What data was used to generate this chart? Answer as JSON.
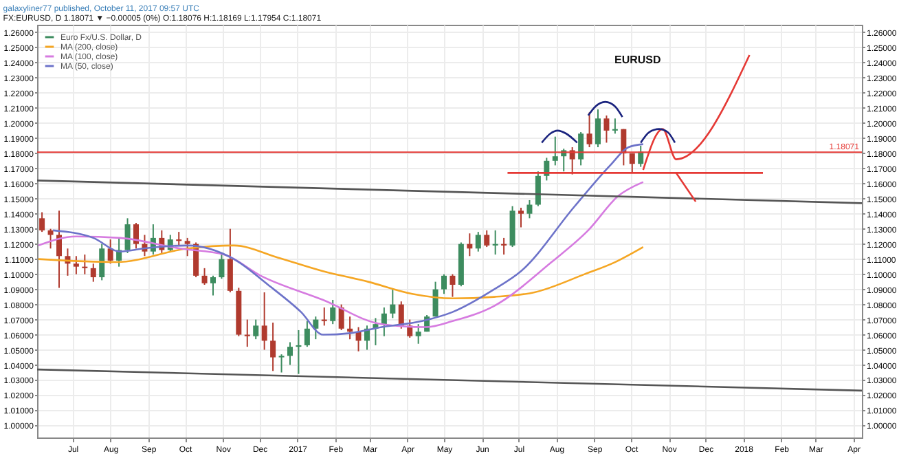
{
  "chart_data": {
    "type": "candlestick",
    "title": "galaxyliner77 published, October 11, 2017 09:57 UTC",
    "subtitle": "FX:EURUSD, D 1.18071 ▼ −0.00005 (0%) O:1.18076 H:1.18169 L:1.17954 C:1.18071",
    "annotations": [
      "EURUSD"
    ],
    "xlim": [
      "2016-06-02",
      "2018-04-08"
    ],
    "xticks": [
      {
        "value": "2016-07-01",
        "label": "Jul"
      },
      {
        "value": "2016-08-01",
        "label": "Aug"
      },
      {
        "value": "2016-09-01",
        "label": "Sep"
      },
      {
        "value": "2016-10-01",
        "label": "Oct"
      },
      {
        "value": "2016-11-01",
        "label": "Nov"
      },
      {
        "value": "2016-12-01",
        "label": "Dec"
      },
      {
        "value": "2017-01-01",
        "label": "2017"
      },
      {
        "value": "2017-02-01",
        "label": "Feb"
      },
      {
        "value": "2017-03-01",
        "label": "Mar"
      },
      {
        "value": "2017-04-01",
        "label": "Apr"
      },
      {
        "value": "2017-05-01",
        "label": "May"
      },
      {
        "value": "2017-06-01",
        "label": "Jun"
      },
      {
        "value": "2017-07-01",
        "label": "Jul"
      },
      {
        "value": "2017-08-01",
        "label": "Aug"
      },
      {
        "value": "2017-09-01",
        "label": "Sep"
      },
      {
        "value": "2017-10-01",
        "label": "Oct"
      },
      {
        "value": "2017-11-01",
        "label": "Nov"
      },
      {
        "value": "2017-12-01",
        "label": "Dec"
      },
      {
        "value": "2018-01-01",
        "label": "2018"
      },
      {
        "value": "2018-02-01",
        "label": "Feb"
      },
      {
        "value": "2018-03-01",
        "label": "Mar"
      },
      {
        "value": "2018-04-01",
        "label": "Apr"
      }
    ],
    "ylim": [
      0.992,
      1.265
    ],
    "yticks": [
      {
        "value": 1.0,
        "label": "1.00000"
      },
      {
        "value": 1.01,
        "label": "1.01000"
      },
      {
        "value": 1.02,
        "label": "1.02000"
      },
      {
        "value": 1.03,
        "label": "1.03000"
      },
      {
        "value": 1.04,
        "label": "1.04000"
      },
      {
        "value": 1.05,
        "label": "1.05000"
      },
      {
        "value": 1.06,
        "label": "1.06000"
      },
      {
        "value": 1.07,
        "label": "1.07000"
      },
      {
        "value": 1.08,
        "label": "1.08000"
      },
      {
        "value": 1.09,
        "label": "1.09000"
      },
      {
        "value": 1.1,
        "label": "1.10000"
      },
      {
        "value": 1.11,
        "label": "1.11000"
      },
      {
        "value": 1.12,
        "label": "1.12000"
      },
      {
        "value": 1.13,
        "label": "1.13000"
      },
      {
        "value": 1.14,
        "label": "1.14000"
      },
      {
        "value": 1.15,
        "label": "1.15000"
      },
      {
        "value": 1.16,
        "label": "1.16000"
      },
      {
        "value": 1.17,
        "label": "1.17000"
      },
      {
        "value": 1.18,
        "label": "1.18000"
      },
      {
        "value": 1.19,
        "label": "1.19000"
      },
      {
        "value": 1.2,
        "label": "1.20000"
      },
      {
        "value": 1.21,
        "label": "1.21000"
      },
      {
        "value": 1.22,
        "label": "1.22000"
      },
      {
        "value": 1.23,
        "label": "1.23000"
      },
      {
        "value": 1.24,
        "label": "1.24000"
      },
      {
        "value": 1.25,
        "label": "1.25000"
      },
      {
        "value": 1.26,
        "label": "1.26000"
      }
    ],
    "y2lim": [
      0.992,
      1.265
    ],
    "y2ticks": [
      {
        "value": 1.0,
        "label": "1.00000"
      },
      {
        "value": 1.01,
        "label": "1.01000"
      },
      {
        "value": 1.02,
        "label": "1.02000"
      },
      {
        "value": 1.03,
        "label": "1.03000"
      },
      {
        "value": 1.04,
        "label": "1.04000"
      },
      {
        "value": 1.05,
        "label": "1.05000"
      },
      {
        "value": 1.06,
        "label": "1.06000"
      },
      {
        "value": 1.07,
        "label": "1.07000"
      },
      {
        "value": 1.08,
        "label": "1.08000"
      },
      {
        "value": 1.09,
        "label": "1.09000"
      },
      {
        "value": 1.1,
        "label": "1.10000"
      },
      {
        "value": 1.11,
        "label": "1.11000"
      },
      {
        "value": 1.12,
        "label": "1.12000"
      },
      {
        "value": 1.13,
        "label": "1.13000"
      },
      {
        "value": 1.14,
        "label": "1.14000"
      },
      {
        "value": 1.15,
        "label": "1.15000"
      },
      {
        "value": 1.16,
        "label": "1.16000"
      },
      {
        "value": 1.17,
        "label": "1.17000"
      },
      {
        "value": 1.18,
        "label": "1.18000"
      },
      {
        "value": 1.19,
        "label": "1.19000"
      },
      {
        "value": 1.2,
        "label": "1.20000"
      },
      {
        "value": 1.21,
        "label": "1.21000"
      },
      {
        "value": 1.22,
        "label": "1.22000"
      },
      {
        "value": 1.23,
        "label": "1.23000"
      },
      {
        "value": 1.24,
        "label": "1.24000"
      },
      {
        "value": 1.25,
        "label": "1.25000"
      },
      {
        "value": 1.26,
        "label": "1.26000"
      }
    ],
    "grid": true,
    "legend": "top left",
    "ref_lines": [
      {
        "axis": "y",
        "value": 1.18071,
        "label": "1.18071",
        "color": "#e53935"
      }
    ],
    "series": [
      {
        "name": "Euro Fx/U.S. Dollar, D",
        "color": "#3d8c5f",
        "x": [
          "2016-06-06",
          "2016-06-13",
          "2016-06-20",
          "2016-06-27",
          "2016-07-04",
          "2016-07-11",
          "2016-07-18",
          "2016-07-25",
          "2016-08-01",
          "2016-08-08",
          "2016-08-15",
          "2016-08-22",
          "2016-08-29",
          "2016-09-05",
          "2016-09-12",
          "2016-09-19",
          "2016-09-26",
          "2016-10-03",
          "2016-10-10",
          "2016-10-17",
          "2016-10-24",
          "2016-10-31",
          "2016-11-07",
          "2016-11-14",
          "2016-11-21",
          "2016-11-28",
          "2016-12-05",
          "2016-12-12",
          "2016-12-19",
          "2016-12-26",
          "2017-01-02",
          "2017-01-09",
          "2017-01-16",
          "2017-01-23",
          "2017-01-30",
          "2017-02-06",
          "2017-02-13",
          "2017-02-20",
          "2017-02-27",
          "2017-03-06",
          "2017-03-13",
          "2017-03-20",
          "2017-03-27",
          "2017-04-03",
          "2017-04-10",
          "2017-04-17",
          "2017-04-24",
          "2017-05-01",
          "2017-05-08",
          "2017-05-15",
          "2017-05-22",
          "2017-05-29",
          "2017-06-05",
          "2017-06-12",
          "2017-06-19",
          "2017-06-26",
          "2017-07-03",
          "2017-07-10",
          "2017-07-17",
          "2017-07-24",
          "2017-07-31",
          "2017-08-07",
          "2017-08-14",
          "2017-08-21",
          "2017-08-28",
          "2017-09-04",
          "2017-09-11",
          "2017-09-18",
          "2017-09-25",
          "2017-10-02",
          "2017-10-09"
        ],
        "ohlc": [
          [
            1.137,
            1.141,
            1.128,
            1.129
          ],
          [
            1.129,
            1.13,
            1.117,
            1.126
          ],
          [
            1.126,
            1.142,
            1.091,
            1.112
          ],
          [
            1.112,
            1.117,
            1.099,
            1.107
          ],
          [
            1.107,
            1.112,
            1.1,
            1.105
          ],
          [
            1.105,
            1.113,
            1.1,
            1.104
          ],
          [
            1.104,
            1.107,
            1.095,
            1.098
          ],
          [
            1.098,
            1.12,
            1.096,
            1.117
          ],
          [
            1.117,
            1.123,
            1.107,
            1.109
          ],
          [
            1.109,
            1.124,
            1.105,
            1.116
          ],
          [
            1.116,
            1.137,
            1.114,
            1.133
          ],
          [
            1.133,
            1.134,
            1.117,
            1.12
          ],
          [
            1.12,
            1.126,
            1.112,
            1.115
          ],
          [
            1.115,
            1.133,
            1.113,
            1.124
          ],
          [
            1.124,
            1.129,
            1.114,
            1.116
          ],
          [
            1.116,
            1.126,
            1.115,
            1.123
          ],
          [
            1.123,
            1.128,
            1.119,
            1.122
          ],
          [
            1.122,
            1.124,
            1.112,
            1.12
          ],
          [
            1.12,
            1.121,
            1.098,
            1.099
          ],
          [
            1.099,
            1.104,
            1.093,
            1.094
          ],
          [
            1.094,
            1.099,
            1.086,
            1.098
          ],
          [
            1.098,
            1.114,
            1.097,
            1.11
          ],
          [
            1.11,
            1.13,
            1.088,
            1.089
          ],
          [
            1.089,
            1.091,
            1.059,
            1.06
          ],
          [
            1.06,
            1.07,
            1.052,
            1.059
          ],
          [
            1.059,
            1.07,
            1.057,
            1.066
          ],
          [
            1.066,
            1.088,
            1.05,
            1.056
          ],
          [
            1.056,
            1.068,
            1.036,
            1.045
          ],
          [
            1.045,
            1.047,
            1.035,
            1.046
          ],
          [
            1.046,
            1.055,
            1.04,
            1.052
          ],
          [
            1.052,
            1.063,
            1.034,
            1.053
          ],
          [
            1.053,
            1.069,
            1.052,
            1.064
          ],
          [
            1.064,
            1.072,
            1.057,
            1.07
          ],
          [
            1.07,
            1.078,
            1.066,
            1.069
          ],
          [
            1.069,
            1.083,
            1.067,
            1.078
          ],
          [
            1.078,
            1.08,
            1.063,
            1.064
          ],
          [
            1.064,
            1.072,
            1.057,
            1.062
          ],
          [
            1.062,
            1.065,
            1.049,
            1.056
          ],
          [
            1.056,
            1.066,
            1.05,
            1.064
          ],
          [
            1.064,
            1.071,
            1.053,
            1.067
          ],
          [
            1.067,
            1.078,
            1.059,
            1.074
          ],
          [
            1.074,
            1.09,
            1.071,
            1.08
          ],
          [
            1.08,
            1.082,
            1.064,
            1.066
          ],
          [
            1.066,
            1.07,
            1.058,
            1.059
          ],
          [
            1.059,
            1.067,
            1.054,
            1.062
          ],
          [
            1.062,
            1.073,
            1.062,
            1.072
          ],
          [
            1.072,
            1.095,
            1.072,
            1.09
          ],
          [
            1.09,
            1.1,
            1.087,
            1.099
          ],
          [
            1.099,
            1.1,
            1.085,
            1.093
          ],
          [
            1.093,
            1.121,
            1.092,
            1.12
          ],
          [
            1.12,
            1.127,
            1.112,
            1.117
          ],
          [
            1.117,
            1.128,
            1.115,
            1.126
          ],
          [
            1.126,
            1.129,
            1.118,
            1.119
          ],
          [
            1.119,
            1.129,
            1.113,
            1.12
          ],
          [
            1.12,
            1.124,
            1.113,
            1.119
          ],
          [
            1.119,
            1.145,
            1.118,
            1.142
          ],
          [
            1.142,
            1.144,
            1.131,
            1.14
          ],
          [
            1.14,
            1.149,
            1.137,
            1.146
          ],
          [
            1.146,
            1.168,
            1.145,
            1.165
          ],
          [
            1.165,
            1.177,
            1.162,
            1.175
          ],
          [
            1.175,
            1.191,
            1.172,
            1.178
          ],
          [
            1.178,
            1.183,
            1.168,
            1.182
          ],
          [
            1.182,
            1.184,
            1.166,
            1.176
          ],
          [
            1.176,
            1.194,
            1.172,
            1.193
          ],
          [
            1.193,
            1.207,
            1.184,
            1.186
          ],
          [
            1.186,
            1.209,
            1.184,
            1.203
          ],
          [
            1.203,
            1.205,
            1.187,
            1.195
          ],
          [
            1.195,
            1.203,
            1.193,
            1.196
          ],
          [
            1.196,
            1.196,
            1.172,
            1.18
          ],
          [
            1.18,
            1.18,
            1.167,
            1.173
          ],
          [
            1.173,
            1.185,
            1.171,
            1.181
          ]
        ],
        "colors": [
          "#b03a2e",
          "#b03a2e",
          "#b03a2e",
          "#b03a2e",
          "#b03a2e",
          "#b03a2e",
          "#b03a2e",
          "#3d8c5f",
          "#b03a2e",
          "#3d8c5f",
          "#3d8c5f",
          "#b03a2e",
          "#b03a2e",
          "#3d8c5f",
          "#b03a2e",
          "#3d8c5f",
          "#b03a2e",
          "#b03a2e",
          "#b03a2e",
          "#b03a2e",
          "#3d8c5f",
          "#3d8c5f",
          "#b03a2e",
          "#b03a2e",
          "#b03a2e",
          "#3d8c5f",
          "#b03a2e",
          "#b03a2e",
          "#3d8c5f",
          "#3d8c5f",
          "#3d8c5f",
          "#3d8c5f",
          "#3d8c5f",
          "#b03a2e",
          "#3d8c5f",
          "#b03a2e",
          "#b03a2e",
          "#b03a2e",
          "#3d8c5f",
          "#3d8c5f",
          "#3d8c5f",
          "#3d8c5f",
          "#b03a2e",
          "#b03a2e",
          "#3d8c5f",
          "#3d8c5f",
          "#3d8c5f",
          "#3d8c5f",
          "#b03a2e",
          "#3d8c5f",
          "#b03a2e",
          "#3d8c5f",
          "#b03a2e",
          "#3d8c5f",
          "#b03a2e",
          "#3d8c5f",
          "#b03a2e",
          "#3d8c5f",
          "#3d8c5f",
          "#3d8c5f",
          "#3d8c5f",
          "#3d8c5f",
          "#b03a2e",
          "#3d8c5f",
          "#b03a2e",
          "#3d8c5f",
          "#b03a2e",
          "#3d8c5f",
          "#b03a2e",
          "#b03a2e",
          "#3d8c5f"
        ]
      },
      {
        "name": "MA (200, close)",
        "type": "line",
        "color": "#f5a623",
        "x": [
          "2016-06-03",
          "2016-08-06",
          "2016-10-03",
          "2016-11-10",
          "2016-12-16",
          "2017-01-22",
          "2017-02-28",
          "2017-04-05",
          "2017-05-08",
          "2017-06-11",
          "2017-07-14",
          "2017-08-24",
          "2017-09-18",
          "2017-10-11"
        ],
        "values": [
          1.11,
          1.108,
          1.117,
          1.119,
          1.111,
          1.102,
          1.095,
          1.087,
          1.084,
          1.085,
          1.088,
          1.1,
          1.108,
          1.118
        ]
      },
      {
        "name": "MA (100, close)",
        "type": "line",
        "color": "#d67be0",
        "x": [
          "2016-06-03",
          "2016-07-04",
          "2016-08-09",
          "2016-09-27",
          "2016-11-02",
          "2016-12-02",
          "2017-01-22",
          "2017-03-11",
          "2017-04-16",
          "2017-05-08",
          "2017-06-11",
          "2017-07-28",
          "2017-08-27",
          "2017-09-21",
          "2017-10-11"
        ],
        "values": [
          1.119,
          1.125,
          1.124,
          1.117,
          1.113,
          1.099,
          1.083,
          1.067,
          1.065,
          1.069,
          1.079,
          1.108,
          1.129,
          1.152,
          1.161
        ]
      },
      {
        "name": "MA (50, close)",
        "type": "line",
        "color": "#6d73c9",
        "x": [
          "2016-06-15",
          "2016-07-18",
          "2016-08-09",
          "2016-08-28",
          "2016-10-03",
          "2016-11-10",
          "2016-12-08",
          "2017-01-04",
          "2017-01-22",
          "2017-02-13",
          "2017-03-11",
          "2017-04-13",
          "2017-05-08",
          "2017-06-11",
          "2017-07-03",
          "2017-08-16",
          "2017-09-14",
          "2017-09-29",
          "2017-10-11"
        ],
        "values": [
          1.129,
          1.124,
          1.115,
          1.117,
          1.119,
          1.11,
          1.093,
          1.075,
          1.06,
          1.061,
          1.065,
          1.069,
          1.075,
          1.09,
          1.102,
          1.145,
          1.172,
          1.184,
          1.186
        ]
      },
      {
        "type": "line",
        "color": "#555555",
        "x": [
          "2016-06-02",
          "2018-04-08"
        ],
        "values": [
          1.162,
          1.147
        ]
      },
      {
        "type": "line",
        "color": "#555555",
        "x": [
          "2016-06-02",
          "2018-04-08"
        ],
        "values": [
          1.037,
          1.023
        ]
      },
      {
        "type": "line",
        "color": "#e53935",
        "x": [
          "2017-06-22",
          "2018-01-17"
        ],
        "values": [
          1.167,
          1.167
        ]
      },
      {
        "type": "line",
        "color": "#e53935",
        "x": [
          "2017-10-11",
          "2017-10-27",
          "2017-11-07",
          "2018-01-06"
        ],
        "values": [
          1.169,
          1.196,
          1.176,
          1.245
        ]
      },
      {
        "type": "line",
        "color": "#e53935",
        "x": [
          "2017-11-07",
          "2017-11-23"
        ],
        "values": [
          1.167,
          1.148
        ]
      },
      {
        "type": "line",
        "color": "#1a237e",
        "x": [
          "2017-07-20",
          "2017-07-27",
          "2017-08-02",
          "2017-08-09",
          "2017-08-18"
        ],
        "values": [
          1.187,
          1.193,
          1.195,
          1.193,
          1.187
        ]
      },
      {
        "type": "line",
        "color": "#1a237e",
        "x": [
          "2017-08-27",
          "2017-09-02",
          "2017-09-10",
          "2017-09-18",
          "2017-09-24"
        ],
        "values": [
          1.205,
          1.211,
          1.214,
          1.211,
          1.204
        ]
      },
      {
        "type": "line",
        "color": "#1a237e",
        "x": [
          "2017-10-09",
          "2017-10-16",
          "2017-10-24",
          "2017-10-31",
          "2017-11-06"
        ],
        "values": [
          1.187,
          1.194,
          1.196,
          1.194,
          1.187
        ]
      }
    ]
  }
}
